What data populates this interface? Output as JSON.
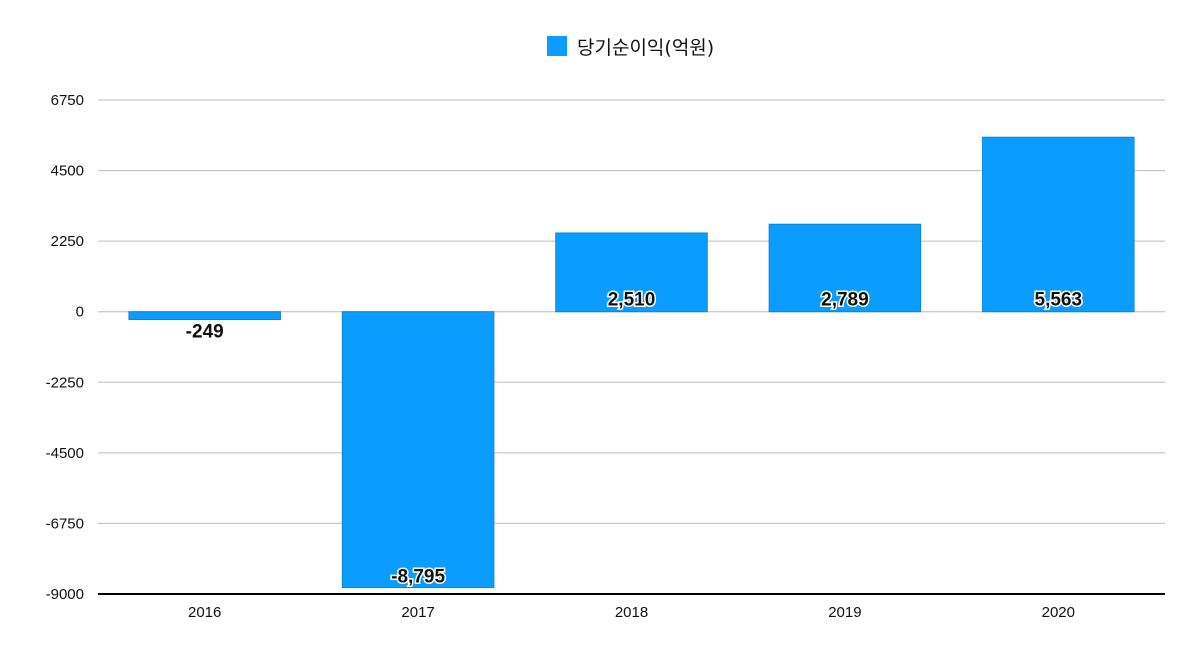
{
  "chart_data": {
    "type": "bar",
    "title": "",
    "xlabel": "",
    "ylabel": "",
    "legend": {
      "position": "top-center",
      "entries": [
        "당기순이익(억원)"
      ]
    },
    "categories": [
      "2016",
      "2017",
      "2018",
      "2019",
      "2020"
    ],
    "series": [
      {
        "name": "당기순이익(억원)",
        "values": [
          -249,
          -8795,
          2510,
          2789,
          5563
        ],
        "data_labels": [
          "-249",
          "-8,795",
          "2,510",
          "2,789",
          "5,563"
        ],
        "color": "#0A9DFF"
      }
    ],
    "yticks": [
      6750,
      4500,
      2250,
      0,
      -2250,
      -4500,
      -6750,
      -9000
    ],
    "ylim": [
      -9000,
      6750
    ],
    "grid": true,
    "gridline_color": "#BDBDBD",
    "axis_color": "#000000"
  }
}
